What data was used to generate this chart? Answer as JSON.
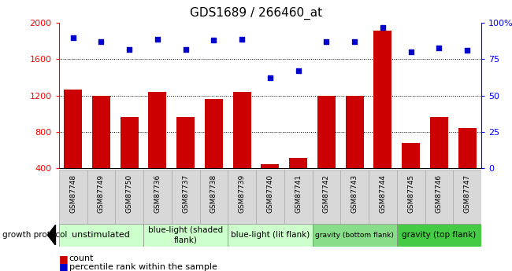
{
  "title": "GDS1689 / 266460_at",
  "samples": [
    "GSM87748",
    "GSM87749",
    "GSM87750",
    "GSM87736",
    "GSM87737",
    "GSM87738",
    "GSM87739",
    "GSM87740",
    "GSM87741",
    "GSM87742",
    "GSM87743",
    "GSM87744",
    "GSM87745",
    "GSM87746",
    "GSM87747"
  ],
  "counts": [
    1270,
    1195,
    960,
    1240,
    960,
    1165,
    1240,
    440,
    510,
    1195,
    1195,
    1920,
    680,
    960,
    840
  ],
  "percentiles": [
    90,
    87,
    82,
    89,
    82,
    88,
    89,
    62,
    67,
    87,
    87,
    97,
    80,
    83,
    81
  ],
  "group_colors": [
    "#ccffcc",
    "#ccffcc",
    "#ccffcc",
    "#88dd88",
    "#44cc44"
  ],
  "group_labels": [
    "unstimulated",
    "blue-light (shaded\nflank)",
    "blue-light (lit flank)",
    "gravity (bottom flank)",
    "gravity (top flank)"
  ],
  "group_ranges": [
    [
      0,
      3
    ],
    [
      3,
      6
    ],
    [
      6,
      9
    ],
    [
      9,
      12
    ],
    [
      12,
      15
    ]
  ],
  "group_font_sizes": [
    8,
    7.5,
    7.5,
    6.5,
    7.5
  ],
  "ylim_left": [
    400,
    2000
  ],
  "ylim_right": [
    0,
    100
  ],
  "yticks_left": [
    400,
    800,
    1200,
    1600,
    2000
  ],
  "yticks_right": [
    0,
    25,
    50,
    75,
    100
  ],
  "bar_color": "#cc0000",
  "dot_color": "#0000cc",
  "cell_bg": "#d8d8d8",
  "plot_bg": "#ffffff",
  "legend_count_color": "#cc0000",
  "legend_pct_color": "#0000cc"
}
